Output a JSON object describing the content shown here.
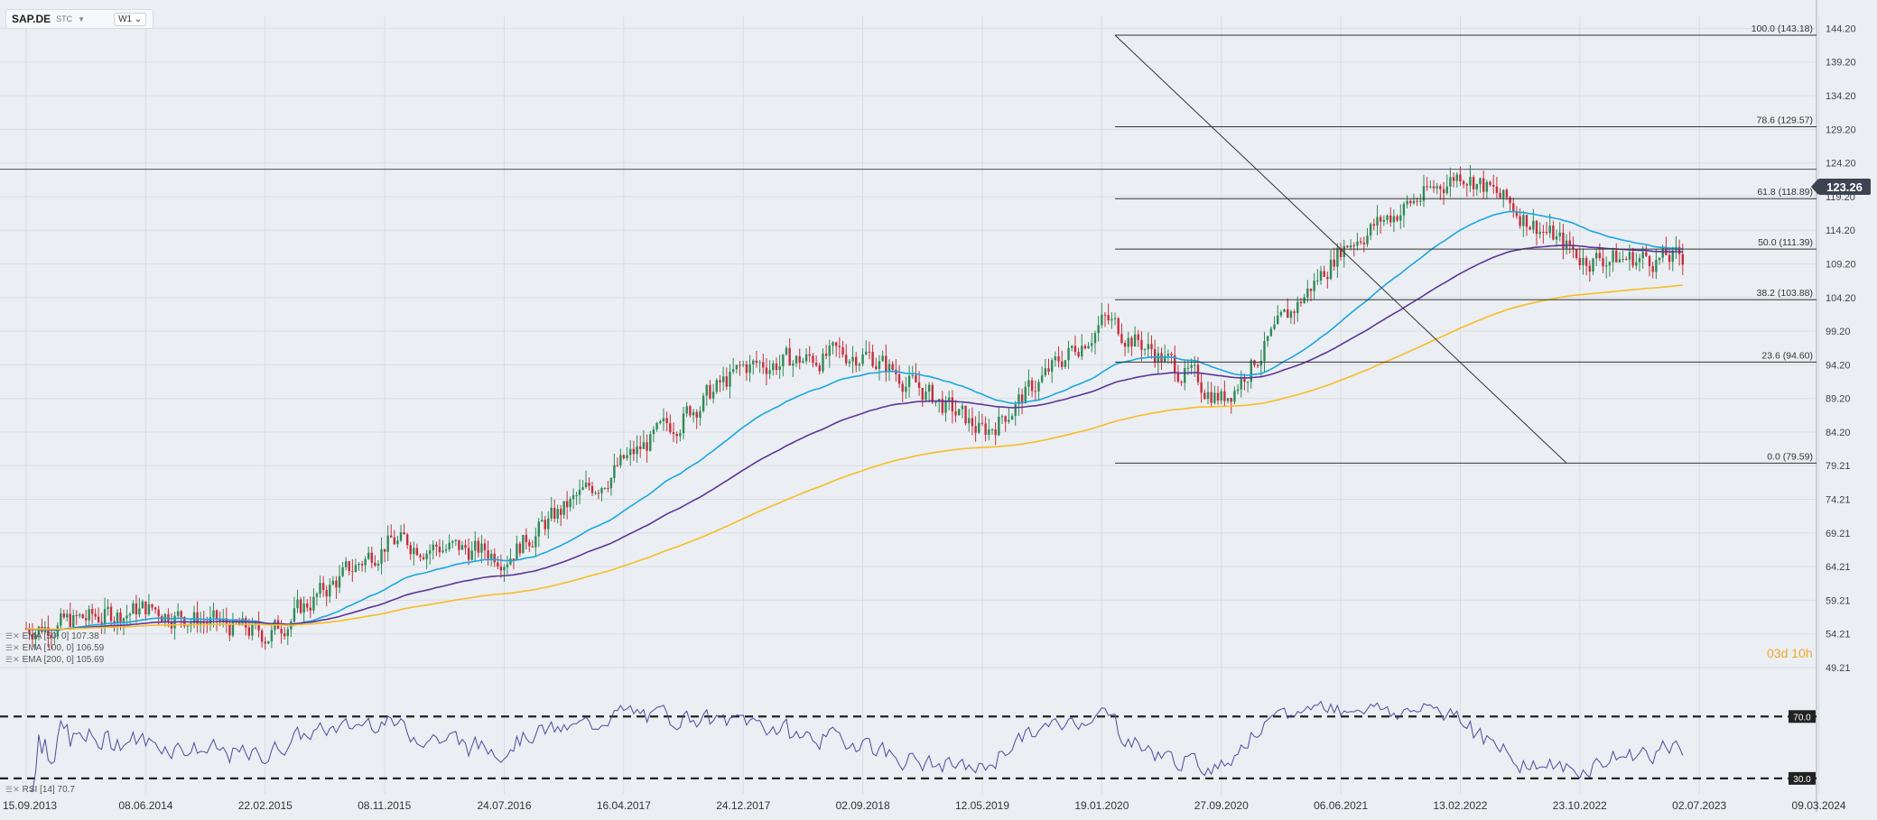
{
  "toolbar": {
    "symbol": "SAP.DE",
    "symbol_type": "STC",
    "timeframe": "W1"
  },
  "last_price": "123.26",
  "countdown": "03d 10h",
  "indicators": {
    "ema50": "EMA [50, 0] 107.38",
    "ema100": "EMA [100, 0] 106.59",
    "ema200": "EMA [200, 0] 105.69",
    "rsi": "RSI [14] 70.7"
  },
  "colors": {
    "ema50": "#1aa7e0",
    "ema100": "#5c3598",
    "ema200": "#f7bd26",
    "up": "#2e8b57",
    "down": "#c62f3d",
    "rsi": "#4c4c9e",
    "grid": "#d9dde3"
  },
  "chart_data": {
    "type": "candlestick",
    "timeframe": "W1",
    "ylim": [
      49.21,
      146.0
    ],
    "price_ticks": [
      "144.20",
      "139.20",
      "134.20",
      "129.20",
      "124.20",
      "119.20",
      "114.20",
      "109.20",
      "104.20",
      "99.20",
      "94.20",
      "89.20",
      "84.20",
      "79.21",
      "74.21",
      "69.21",
      "64.21",
      "59.21",
      "54.21",
      "49.21"
    ],
    "x_ticks": [
      "15.09.2013",
      "08.06.2014",
      "22.02.2015",
      "08.11.2015",
      "24.07.2016",
      "16.04.2017",
      "24.12.2017",
      "02.09.2018",
      "12.05.2019",
      "19.01.2020",
      "27.09.2020",
      "06.06.2021",
      "13.02.2022",
      "23.10.2022",
      "02.07.2023",
      "09.03.2024"
    ],
    "last_price": 123.26,
    "close_path": [
      [
        "15.09.2013",
        55
      ],
      [
        "08.06.2014",
        58
      ],
      [
        "22.02.2015",
        54
      ],
      [
        "08.11.2015",
        68
      ],
      [
        "24.07.2016",
        66
      ],
      [
        "16.04.2017",
        80
      ],
      [
        "24.12.2017",
        94
      ],
      [
        "02.09.2018",
        96
      ],
      [
        "12.05.2019",
        84
      ],
      [
        "19.01.2020",
        101
      ],
      [
        "27.09.2020",
        89
      ],
      [
        "06.06.2021",
        112
      ],
      [
        "13.02.2022",
        123
      ],
      [
        "23.10.2022",
        110
      ],
      [
        "02.07.2023",
        110
      ],
      [
        "09.03.2024",
        115
      ]
    ],
    "fibonacci": [
      {
        "label": "100.0 (143.18)",
        "value": 143.18
      },
      {
        "label": "78.6 (129.57)",
        "value": 129.57
      },
      {
        "label": "61.8 (118.89)",
        "value": 118.89
      },
      {
        "label": "50.0 (111.39)",
        "value": 111.39
      },
      {
        "label": "38.2 (103.88)",
        "value": 103.88
      },
      {
        "label": "23.6 (94.60)",
        "value": 94.6
      },
      {
        "label": "0.0 (79.59)",
        "value": 79.59
      }
    ],
    "ema": {
      "ema50": 107.38,
      "ema100": 106.59,
      "ema200": 105.69
    },
    "rsi": {
      "period": 14,
      "value": 70.7,
      "levels": [
        "70.0",
        "30.0"
      ]
    }
  }
}
